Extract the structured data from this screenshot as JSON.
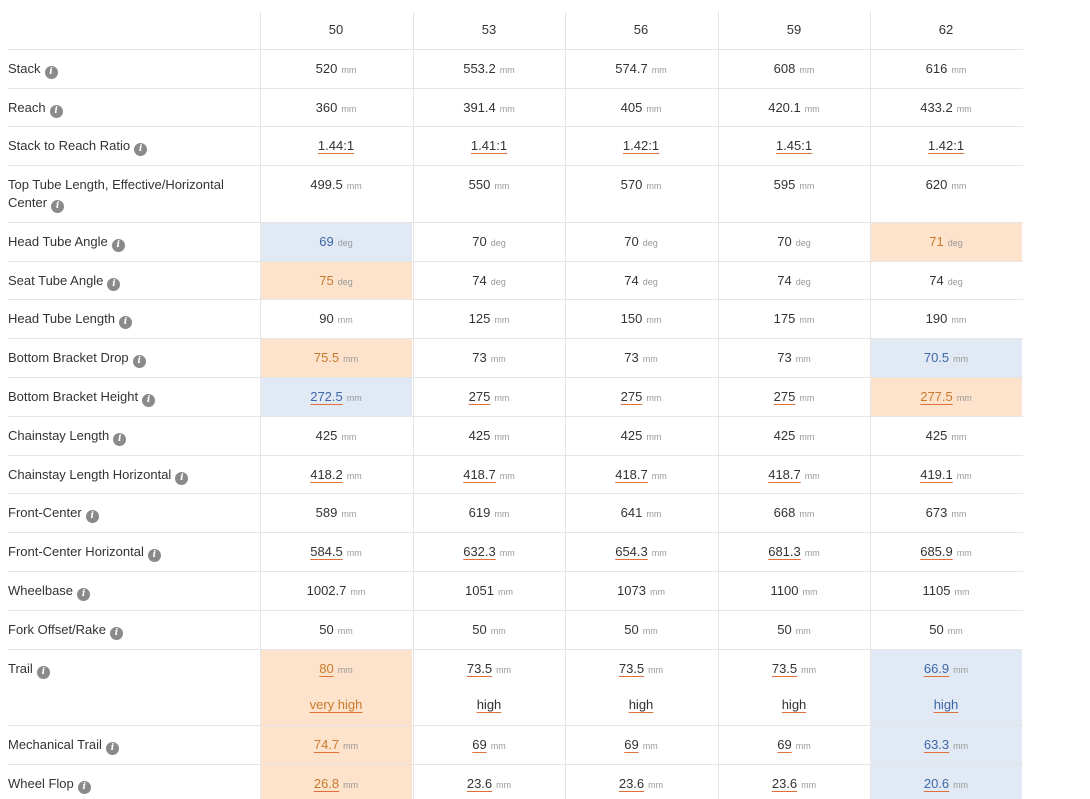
{
  "sizes": [
    "50",
    "53",
    "56",
    "59",
    "62"
  ],
  "rows": [
    {
      "label": "Stack",
      "unit": "mm",
      "values": [
        "520",
        "553.2",
        "574.7",
        "608",
        "616"
      ],
      "underline": false,
      "highlights": [
        null,
        null,
        null,
        null,
        null
      ]
    },
    {
      "label": "Reach",
      "unit": "mm",
      "values": [
        "360",
        "391.4",
        "405",
        "420.1",
        "433.2"
      ],
      "underline": false,
      "highlights": [
        null,
        null,
        null,
        null,
        null
      ]
    },
    {
      "label": "Stack to Reach Ratio",
      "unit": "",
      "values": [
        "1.44:1",
        "1.41:1",
        "1.42:1",
        "1.45:1",
        "1.42:1"
      ],
      "underline": true,
      "highlights": [
        null,
        null,
        null,
        null,
        null
      ]
    },
    {
      "label": "Top Tube Length, Effective/Horizontal Center",
      "unit": "mm",
      "values": [
        "499.5",
        "550",
        "570",
        "595",
        "620"
      ],
      "underline": false,
      "highlights": [
        null,
        null,
        null,
        null,
        null
      ]
    },
    {
      "label": "Head Tube Angle",
      "unit": "deg",
      "values": [
        "69",
        "70",
        "70",
        "70",
        "71"
      ],
      "underline": false,
      "highlights": [
        "blue",
        null,
        null,
        null,
        "orange"
      ]
    },
    {
      "label": "Seat Tube Angle",
      "unit": "deg",
      "values": [
        "75",
        "74",
        "74",
        "74",
        "74"
      ],
      "underline": false,
      "highlights": [
        "orange",
        null,
        null,
        null,
        null
      ]
    },
    {
      "label": "Head Tube Length",
      "unit": "mm",
      "values": [
        "90",
        "125",
        "150",
        "175",
        "190"
      ],
      "underline": false,
      "highlights": [
        null,
        null,
        null,
        null,
        null
      ]
    },
    {
      "label": "Bottom Bracket Drop",
      "unit": "mm",
      "values": [
        "75.5",
        "73",
        "73",
        "73",
        "70.5"
      ],
      "underline": false,
      "highlights": [
        "orange",
        null,
        null,
        null,
        "blue"
      ]
    },
    {
      "label": "Bottom Bracket Height",
      "unit": "mm",
      "values": [
        "272.5",
        "275",
        "275",
        "275",
        "277.5"
      ],
      "underline": true,
      "highlights": [
        "blue",
        null,
        null,
        null,
        "orange"
      ]
    },
    {
      "label": "Chainstay Length",
      "unit": "mm",
      "values": [
        "425",
        "425",
        "425",
        "425",
        "425"
      ],
      "underline": false,
      "highlights": [
        null,
        null,
        null,
        null,
        null
      ]
    },
    {
      "label": "Chainstay Length Horizontal",
      "unit": "mm",
      "values": [
        "418.2",
        "418.7",
        "418.7",
        "418.7",
        "419.1"
      ],
      "underline": true,
      "highlights": [
        null,
        null,
        null,
        null,
        null
      ]
    },
    {
      "label": "Front-Center",
      "unit": "mm",
      "values": [
        "589",
        "619",
        "641",
        "668",
        "673"
      ],
      "underline": false,
      "highlights": [
        null,
        null,
        null,
        null,
        null
      ]
    },
    {
      "label": "Front-Center Horizontal",
      "unit": "mm",
      "values": [
        "584.5",
        "632.3",
        "654.3",
        "681.3",
        "685.9"
      ],
      "underline": true,
      "highlights": [
        null,
        null,
        null,
        null,
        null
      ]
    },
    {
      "label": "Wheelbase",
      "unit": "mm",
      "values": [
        "1002.7",
        "1051",
        "1073",
        "1100",
        "1105"
      ],
      "underline": false,
      "highlights": [
        null,
        null,
        null,
        null,
        null
      ]
    },
    {
      "label": "Fork Offset/Rake",
      "unit": "mm",
      "values": [
        "50",
        "50",
        "50",
        "50",
        "50"
      ],
      "underline": false,
      "highlights": [
        null,
        null,
        null,
        null,
        null
      ]
    },
    {
      "label": "Trail",
      "unit": "mm",
      "values": [
        "80",
        "73.5",
        "73.5",
        "73.5",
        "66.9"
      ],
      "underline": true,
      "ratings": [
        "very high",
        "high",
        "high",
        "high",
        "high"
      ],
      "highlights": [
        "orange",
        null,
        null,
        null,
        "blue"
      ]
    },
    {
      "label": "Mechanical Trail",
      "unit": "mm",
      "values": [
        "74.7",
        "69",
        "69",
        "69",
        "63.3"
      ],
      "underline": true,
      "highlights": [
        "orange",
        null,
        null,
        null,
        "blue"
      ]
    },
    {
      "label": "Wheel Flop",
      "unit": "mm",
      "values": [
        "26.8",
        "23.6",
        "23.6",
        "23.6",
        "20.6"
      ],
      "underline": true,
      "highlights": [
        "orange",
        null,
        null,
        null,
        "blue"
      ]
    }
  ],
  "info_icon": "info-circle-icon",
  "colors": {
    "highlight_low": "#e1e9f5",
    "highlight_high": "#fde3cc",
    "underline": "#e0703a"
  }
}
